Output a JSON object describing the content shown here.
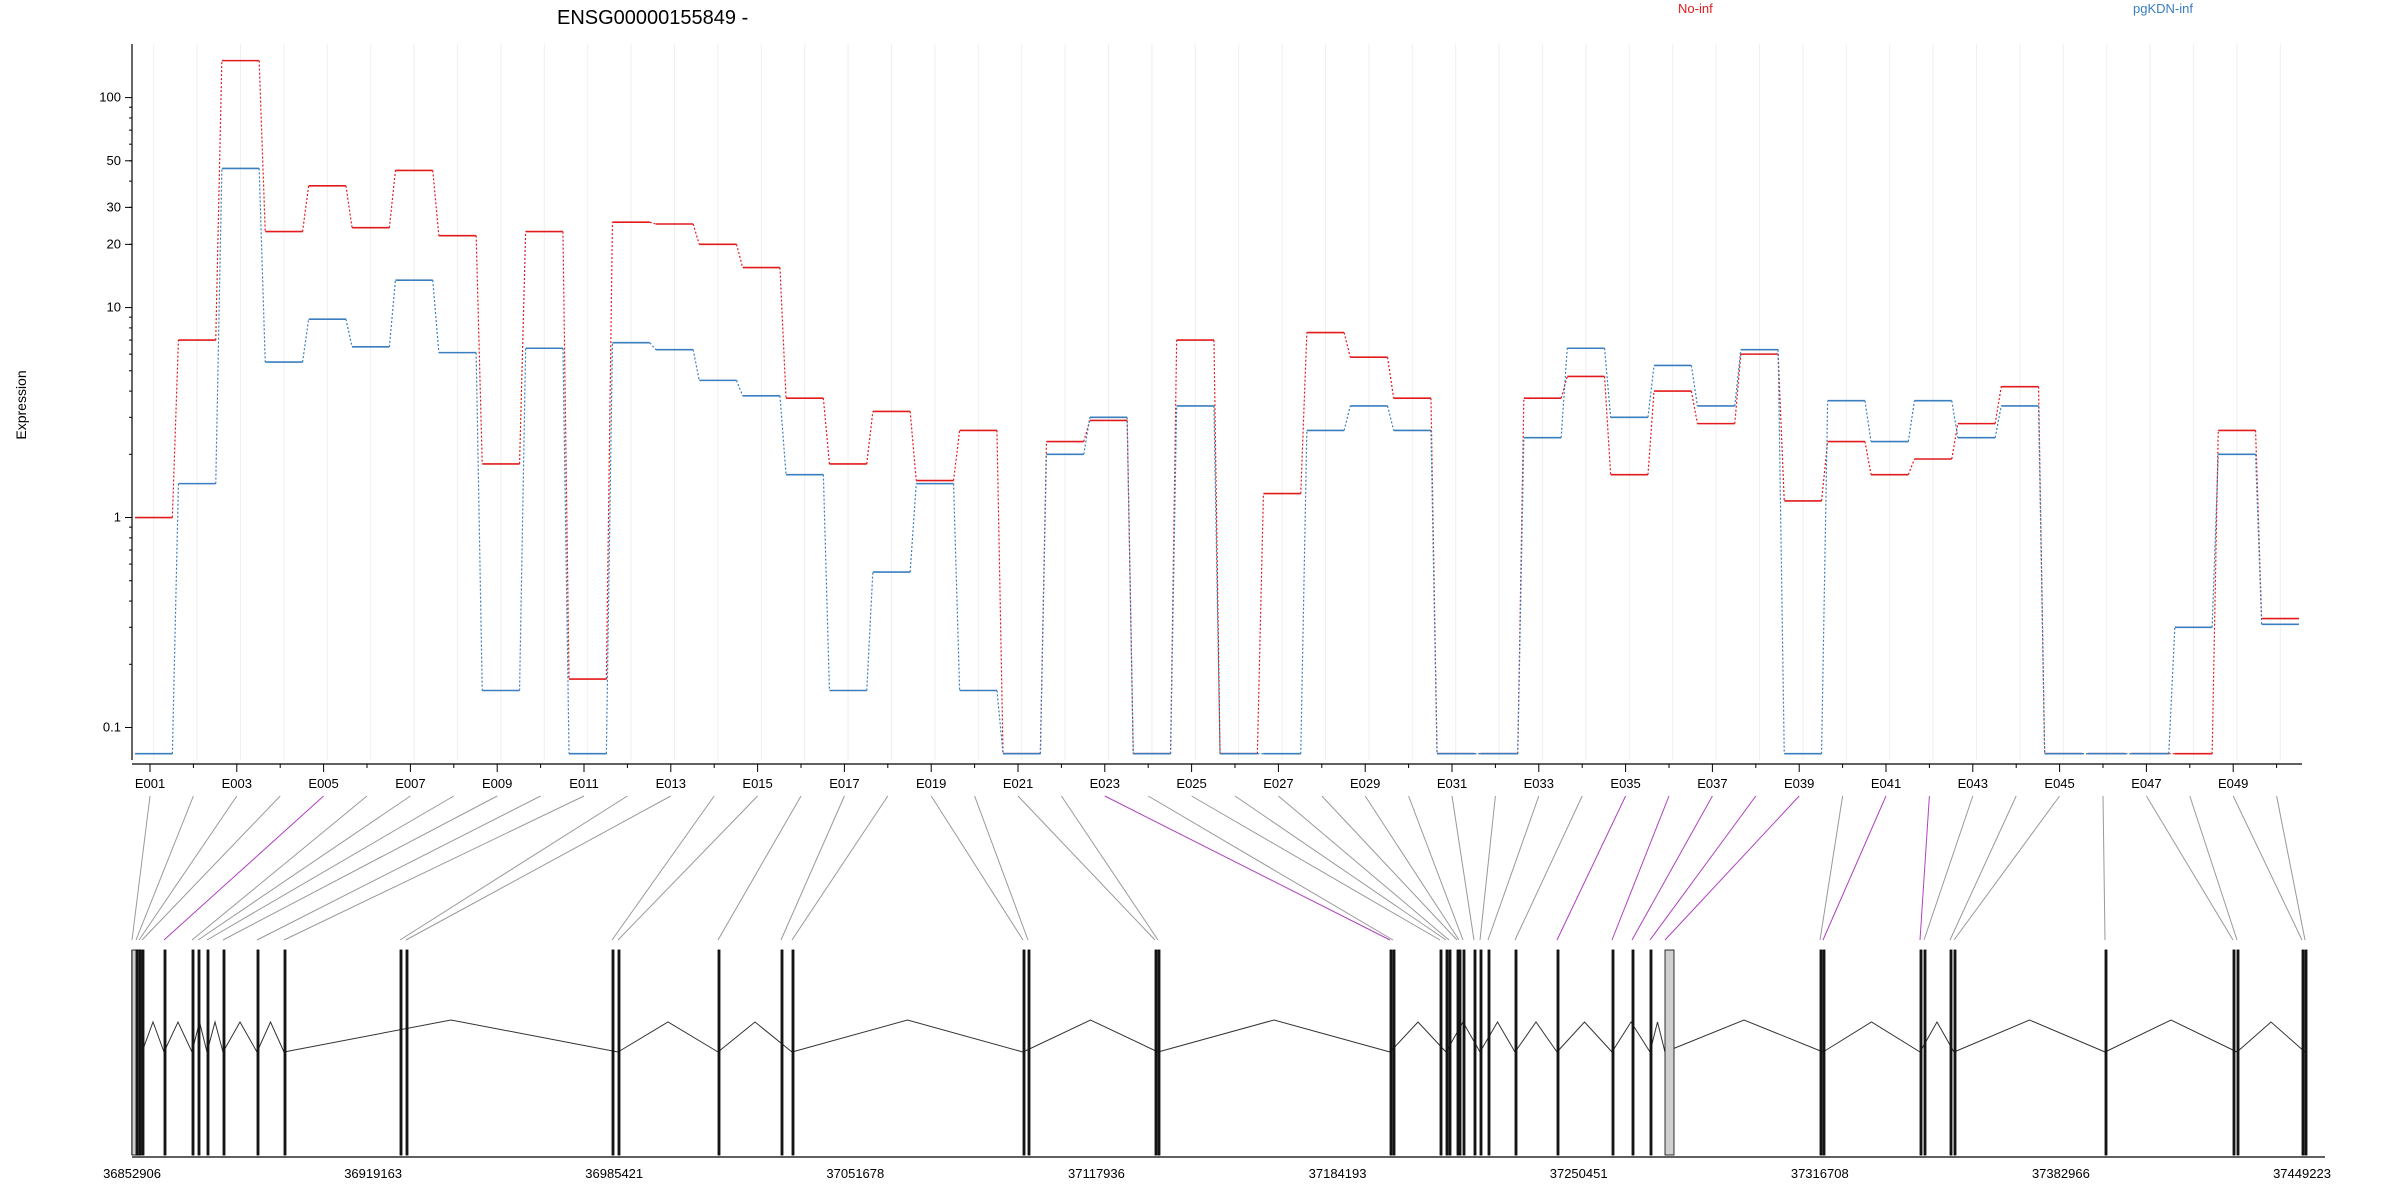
{
  "chart_data": {
    "type": "line",
    "title": "ENSG00000155849 -",
    "ylabel": "Expression",
    "yscale": "log",
    "ylim": [
      0.07,
      180
    ],
    "y_ticks": [
      {
        "value": 0.1,
        "label": "0.1"
      },
      {
        "value": 1,
        "label": "1"
      },
      {
        "value": 10,
        "label": "10"
      },
      {
        "value": 20,
        "label": "20"
      },
      {
        "value": 30,
        "label": "30"
      },
      {
        "value": 50,
        "label": "50"
      },
      {
        "value": 100,
        "label": "100"
      }
    ],
    "x_exons": [
      "E001",
      "E002",
      "E003",
      "E004",
      "E005",
      "E006",
      "E007",
      "E008",
      "E009",
      "E010",
      "E011",
      "E012",
      "E013",
      "E014",
      "E015",
      "E016",
      "E017",
      "E018",
      "E019",
      "E020",
      "E021",
      "E022",
      "E023",
      "E024",
      "E025",
      "E026",
      "E027",
      "E028",
      "E029",
      "E030",
      "E031",
      "E032",
      "E033",
      "E034",
      "E035",
      "E036",
      "E037",
      "E038",
      "E039",
      "E040",
      "E041",
      "E042",
      "E043",
      "E044",
      "E045",
      "E046",
      "E047",
      "E048",
      "E049",
      "E050"
    ],
    "x_tick_labels": [
      "E001",
      "E003",
      "E005",
      "E007",
      "E009",
      "E011",
      "E013",
      "E015",
      "E017",
      "E019",
      "E021",
      "E023",
      "E025",
      "E027",
      "E029",
      "E031",
      "E033",
      "E035",
      "E037",
      "E039",
      "E041",
      "E043",
      "E045",
      "E047",
      "E049"
    ],
    "series": [
      {
        "name": "No-inf",
        "color": "#e31a1c",
        "values": [
          1.0,
          7.0,
          150,
          23,
          38,
          24,
          45,
          22,
          1.8,
          23,
          0.17,
          25.5,
          25,
          20,
          15.5,
          3.7,
          1.8,
          3.2,
          1.5,
          2.6,
          0.075,
          2.3,
          2.9,
          0.075,
          7.0,
          0.075,
          1.3,
          7.6,
          5.8,
          3.7,
          0.075,
          0.075,
          3.7,
          4.7,
          1.6,
          4.0,
          2.8,
          6.0,
          1.2,
          2.3,
          1.6,
          1.9,
          2.8,
          4.2,
          0.075,
          0.075,
          0.075,
          0.075,
          2.6,
          0.33
        ]
      },
      {
        "name": "pgKDN-inf",
        "color": "#3a7ebf",
        "values": [
          0.075,
          1.45,
          46,
          5.5,
          8.8,
          6.5,
          13.5,
          6.1,
          0.15,
          6.4,
          0.075,
          6.8,
          6.3,
          4.5,
          3.8,
          1.6,
          0.15,
          0.55,
          1.45,
          0.15,
          0.075,
          2.0,
          3.0,
          0.075,
          3.4,
          0.075,
          0.075,
          2.6,
          3.4,
          2.6,
          0.075,
          0.075,
          2.4,
          6.4,
          3.0,
          5.3,
          3.4,
          6.3,
          0.075,
          3.6,
          2.3,
          3.6,
          2.4,
          3.4,
          0.075,
          0.075,
          0.075,
          0.3,
          2.0,
          0.31
        ]
      }
    ],
    "legend_placement": "top",
    "grid": "vertical-only",
    "genomic_axis": {
      "labels": [
        "36852906",
        "36919163",
        "36985421",
        "37051678",
        "37117936",
        "37184193",
        "37250451",
        "37316708",
        "37382966",
        "37449223"
      ]
    }
  }
}
